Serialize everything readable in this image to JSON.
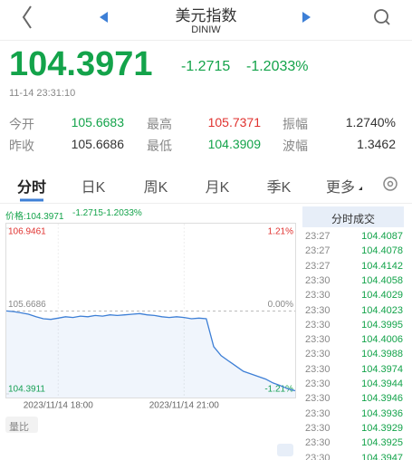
{
  "header": {
    "title": "美元指数",
    "subtitle": "DINIW"
  },
  "quote": {
    "price": "104.3971",
    "change": "-1.2715",
    "change_pct": "-1.2033%",
    "time": "11-14 23:31:10"
  },
  "stats": [
    [
      "今开",
      "105.6683",
      "最高",
      "105.7371",
      "振幅",
      "1.2740%"
    ],
    [
      "昨收",
      "105.6686",
      "最低",
      "104.3909",
      "波幅",
      "1.3462"
    ]
  ],
  "tabs": [
    "分时",
    "日K",
    "周K",
    "月K",
    "季K",
    "更多"
  ],
  "info": {
    "price": "价格:104.3971",
    "change": "-1.2715",
    "change_pct": "-1.2033%"
  },
  "chart": {
    "type": "line",
    "color": "#3d7fd6",
    "ylim": [
      104.3911,
      106.9461
    ],
    "yticks": [
      104.3911,
      105.6686,
      106.9461
    ],
    "right_labels": [
      "-1.21%",
      "0.00%",
      "1.21%"
    ],
    "categories": [
      null,
      null,
      null,
      null,
      null,
      null,
      null,
      "2023/11/14 18:00",
      null,
      null,
      null,
      null,
      null,
      null,
      null,
      null,
      null,
      null,
      null,
      null,
      null,
      null,
      null,
      null,
      "2023/11/14 21:00",
      null,
      null,
      null,
      null,
      null,
      null,
      null,
      null,
      null,
      null,
      null,
      null,
      null,
      null,
      null
    ],
    "values": [
      105.67,
      105.66,
      105.64,
      105.62,
      105.58,
      105.55,
      105.54,
      105.56,
      105.58,
      105.57,
      105.59,
      105.58,
      105.6,
      105.59,
      105.61,
      105.6,
      105.61,
      105.62,
      105.63,
      105.61,
      105.6,
      105.58,
      105.57,
      105.58,
      105.57,
      105.55,
      105.56,
      105.55,
      105.12,
      104.98,
      104.9,
      104.82,
      104.74,
      104.7,
      104.66,
      104.62,
      104.56,
      104.52,
      104.47,
      104.44
    ]
  },
  "volume_button": "量比",
  "trades": {
    "title": "分时成交",
    "rows": [
      [
        "23:27",
        "104.4087"
      ],
      [
        "23:27",
        "104.4078"
      ],
      [
        "23:27",
        "104.4142"
      ],
      [
        "23:30",
        "104.4058"
      ],
      [
        "23:30",
        "104.4029"
      ],
      [
        "23:30",
        "104.4023"
      ],
      [
        "23:30",
        "104.3995"
      ],
      [
        "23:30",
        "104.4006"
      ],
      [
        "23:30",
        "104.3988"
      ],
      [
        "23:30",
        "104.3974"
      ],
      [
        "23:30",
        "104.3944"
      ],
      [
        "23:30",
        "104.3946"
      ],
      [
        "23:30",
        "104.3936"
      ],
      [
        "23:30",
        "104.3929"
      ],
      [
        "23:30",
        "104.3925"
      ],
      [
        "23:30",
        "104.3947"
      ]
    ]
  }
}
